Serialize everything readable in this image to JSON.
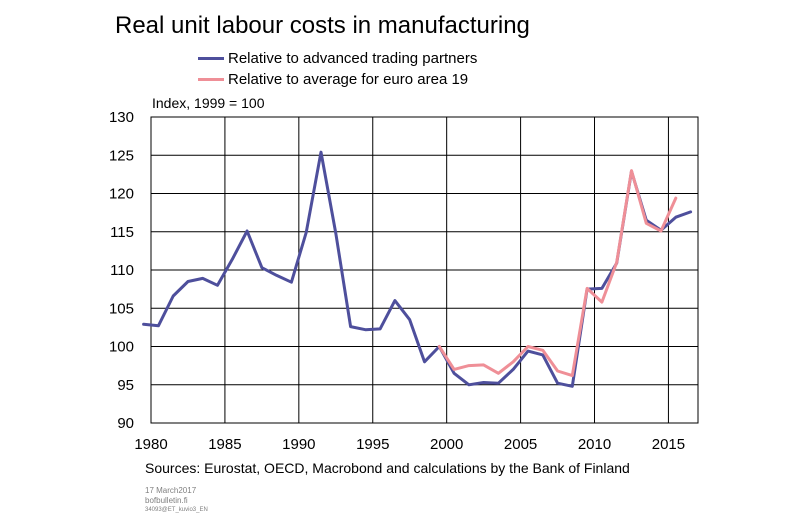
{
  "chart_data": {
    "type": "line",
    "title": "Real unit labour costs in manufacturing",
    "unit_label": "Index, 1999 = 100",
    "xlim": [
      1980,
      2017
    ],
    "ylim": [
      90,
      130
    ],
    "x_ticks": [
      1980,
      1985,
      1990,
      1995,
      2000,
      2005,
      2010,
      2015
    ],
    "y_ticks": [
      90,
      95,
      100,
      105,
      110,
      115,
      120,
      125,
      130
    ],
    "grid": true,
    "legend_position": "top",
    "series": [
      {
        "name": "Relative to advanced trading partners",
        "color": "#4e4f9c",
        "x": [
          1979.5,
          1980.5,
          1981.5,
          1982.5,
          1983.5,
          1984.5,
          1985.5,
          1986.5,
          1987.5,
          1988.5,
          1989.5,
          1990.5,
          1991.5,
          1992.5,
          1993.5,
          1994.5,
          1995.5,
          1996.5,
          1997.5,
          1998.5,
          1999.5,
          2000.5,
          2001.5,
          2002.5,
          2003.5,
          2004.5,
          2005.5,
          2006.5,
          2007.5,
          2008.5,
          2009.5,
          2010.5,
          2011.5,
          2012.5,
          2013.5,
          2014.5,
          2015.5,
          2016.5
        ],
        "y": [
          102.9,
          102.7,
          106.6,
          108.5,
          108.9,
          108.0,
          111.4,
          115.1,
          110.3,
          109.3,
          108.4,
          114.9,
          125.4,
          114.8,
          102.6,
          102.2,
          102.3,
          106.0,
          103.5,
          98.0,
          100.0,
          96.5,
          95.0,
          95.3,
          95.2,
          97.0,
          99.4,
          98.9,
          95.2,
          94.8,
          107.5,
          107.6,
          110.9,
          122.9,
          116.5,
          115.2,
          116.9,
          117.6
        ]
      },
      {
        "name": "Relative to average for euro area 19",
        "color": "#ef8f97",
        "x": [
          1999.5,
          2000.5,
          2001.5,
          2002.5,
          2003.5,
          2004.5,
          2005.5,
          2006.5,
          2007.5,
          2008.5,
          2009.5,
          2010.5,
          2011.5,
          2012.5,
          2013.5,
          2014.5,
          2015.5
        ],
        "y": [
          100.0,
          97.0,
          97.5,
          97.6,
          96.5,
          98.0,
          100.0,
          99.5,
          96.8,
          96.2,
          107.6,
          105.8,
          111.0,
          123.0,
          116.1,
          115.1,
          119.4
        ]
      }
    ]
  },
  "sources": "Sources: Eurostat, OECD, Macrobond and calculations by the Bank of Finland",
  "footer": {
    "date": "17 March2017",
    "site": "bofbulletin.fi",
    "code": "34093@ET_kuvio3_EN"
  }
}
